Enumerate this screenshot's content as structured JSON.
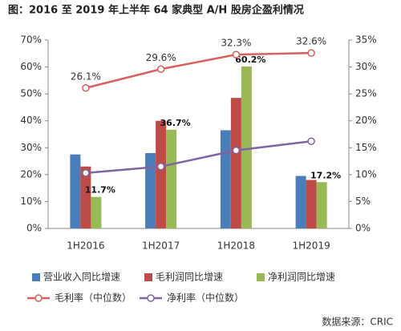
{
  "chart_data": {
    "type": "bar-line",
    "title": "图：2016 至 2019 年上半年 64 家典型 A/H 股房企盈利情况",
    "source": "数据来源：CRIC",
    "categories": [
      "1H2016",
      "1H2017",
      "1H2018",
      "1H2019"
    ],
    "ylim": [
      0,
      70
    ],
    "yticks": [
      {
        "value": 0,
        "label": "0%"
      },
      {
        "value": 10,
        "label": "10%"
      },
      {
        "value": 20,
        "label": "20%"
      },
      {
        "value": 30,
        "label": "30%"
      },
      {
        "value": 40,
        "label": "40%"
      },
      {
        "value": 50,
        "label": "50%"
      },
      {
        "value": 60,
        "label": "60%"
      },
      {
        "value": 70,
        "label": "70%"
      }
    ],
    "y2lim": [
      0,
      35
    ],
    "y2ticks": [
      {
        "value": 0,
        "label": "0%"
      },
      {
        "value": 5,
        "label": "5%"
      },
      {
        "value": 10,
        "label": "10%"
      },
      {
        "value": 15,
        "label": "15%"
      },
      {
        "value": 20,
        "label": "20%"
      },
      {
        "value": 25,
        "label": "25%"
      },
      {
        "value": 30,
        "label": "30%"
      },
      {
        "value": 35,
        "label": "35%"
      }
    ],
    "series": [
      {
        "name": "营业收入同比增速",
        "color": "#4a7ebb",
        "kind": "bar",
        "values": [
          27.5,
          28,
          36.5,
          19.5
        ]
      },
      {
        "name": "毛利润同比增速",
        "color": "#be4b48",
        "kind": "bar",
        "values": [
          23,
          40,
          48.5,
          18
        ]
      },
      {
        "name": "净利润同比增速",
        "color": "#98b954",
        "kind": "bar",
        "values": [
          11.7,
          36.7,
          60.2,
          17.2
        ],
        "value_labels": [
          "11.7%",
          "36.7%",
          "60.2%",
          "17.2%"
        ]
      },
      {
        "name": "毛利率（中位数）",
        "color": "#d9605c",
        "kind": "line",
        "axis": "y2",
        "values": [
          26.1,
          29.6,
          32.3,
          32.6
        ],
        "value_labels": [
          "26.1%",
          "29.6%",
          "32.3%",
          "32.6%"
        ]
      },
      {
        "name": "净利率（中位数）",
        "color": "#8064a2",
        "kind": "line",
        "axis": "y2",
        "values": [
          10.3,
          11.5,
          14.5,
          16.2
        ]
      }
    ]
  }
}
